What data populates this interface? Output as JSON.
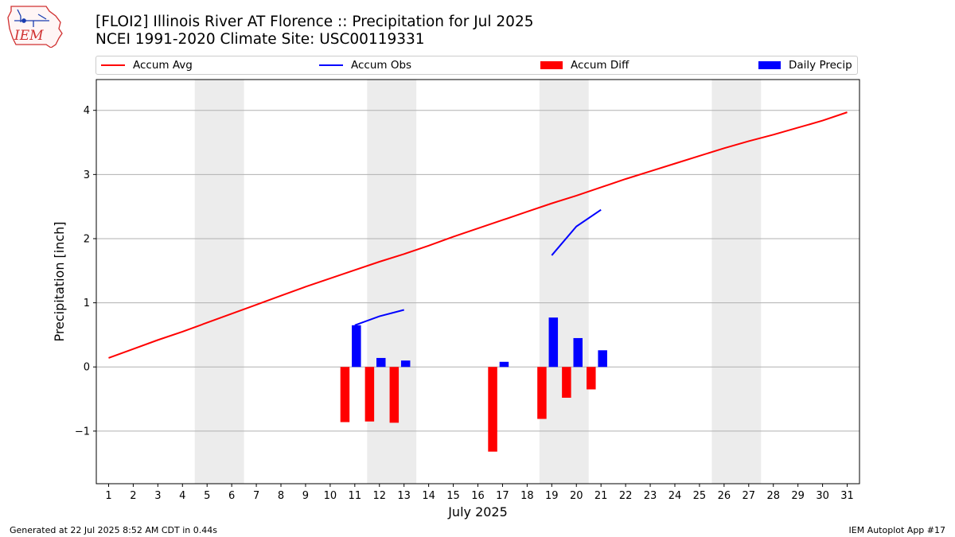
{
  "title_line1": "[FLOI2] Illinois River  AT Florence :: Precipitation for Jul 2025",
  "title_line2": "NCEI 1991-2020 Climate Site: USC00119331",
  "logo_text": "IEM",
  "footer_left": "Generated at 22 Jul 2025 8:52 AM CDT in 0.44s",
  "footer_right": "IEM Autoplot App #17",
  "colors": {
    "accum_avg": "#ff0000",
    "accum_obs": "#0000ff",
    "accum_diff": "#ff0000",
    "daily_precip": "#0000ff",
    "weekend_band": "#ececec",
    "grid": "#b0b0b0"
  },
  "chart_data": {
    "type": "bar",
    "xlabel": "July 2025",
    "ylabel": "Precipitation [inch]",
    "x": [
      1,
      2,
      3,
      4,
      5,
      6,
      7,
      8,
      9,
      10,
      11,
      12,
      13,
      14,
      15,
      16,
      17,
      18,
      19,
      20,
      21,
      22,
      23,
      24,
      25,
      26,
      27,
      28,
      29,
      30,
      31
    ],
    "xlim": [
      0.5,
      31.5
    ],
    "ylim": [
      -1.82,
      4.48
    ],
    "yticks": [
      -1,
      0,
      1,
      2,
      3,
      4
    ],
    "ytick_labels": [
      "−1",
      "0",
      "1",
      "2",
      "3",
      "4"
    ],
    "grid": "horizontal",
    "legend_position": "top",
    "shaded_weekend_spans": [
      [
        4.5,
        6.5
      ],
      [
        11.5,
        13.5
      ],
      [
        18.5,
        20.5
      ],
      [
        25.5,
        27.5
      ]
    ],
    "series": [
      {
        "name": "Accum Avg",
        "kind": "line",
        "x": [
          1,
          2,
          3,
          4,
          5,
          6,
          7,
          8,
          9,
          10,
          11,
          12,
          13,
          14,
          15,
          16,
          17,
          18,
          19,
          20,
          21,
          22,
          23,
          24,
          25,
          26,
          27,
          28,
          29,
          30,
          31
        ],
        "values": [
          0.14,
          0.28,
          0.42,
          0.55,
          0.69,
          0.83,
          0.97,
          1.11,
          1.25,
          1.38,
          1.51,
          1.64,
          1.76,
          1.89,
          2.03,
          2.16,
          2.29,
          2.42,
          2.55,
          2.67,
          2.8,
          2.93,
          3.05,
          3.17,
          3.29,
          3.41,
          3.52,
          3.62,
          3.73,
          3.84,
          3.97
        ]
      },
      {
        "name": "Accum Obs",
        "kind": "line",
        "segments": [
          {
            "x": [
              11,
              12,
              13
            ],
            "values": [
              0.65,
              0.79,
              0.89
            ]
          },
          {
            "x": [
              19,
              20,
              21
            ],
            "values": [
              1.74,
              2.19,
              2.45
            ]
          }
        ]
      },
      {
        "name": "Accum Diff",
        "kind": "bar",
        "x": [
          11,
          12,
          13,
          17,
          19,
          20,
          21
        ],
        "values": [
          -0.86,
          -0.85,
          -0.87,
          -1.32,
          -0.81,
          -0.48,
          -0.35
        ]
      },
      {
        "name": "Daily Precip",
        "kind": "bar",
        "x": [
          11,
          12,
          13,
          17,
          19,
          20,
          21
        ],
        "values": [
          0.65,
          0.14,
          0.1,
          0.08,
          0.77,
          0.45,
          0.26
        ]
      }
    ]
  }
}
